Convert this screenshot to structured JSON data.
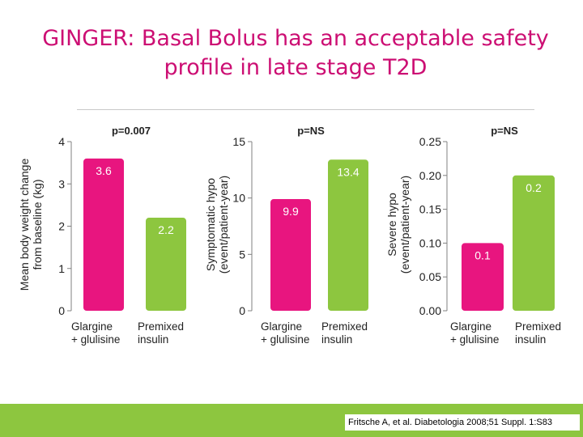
{
  "title": {
    "line1": "GINGER: Basal Bolus has an acceptable safety",
    "line2": "profile in late stage T2D"
  },
  "colors": {
    "title": "#cc0e73",
    "glargine": "#e8157f",
    "premixed": "#8dc63f",
    "footer": "#8dc63f",
    "axis": "#808080"
  },
  "chart_data": [
    {
      "type": "bar",
      "categories": [
        "Glargine + glulisine",
        "Premixed insulin"
      ],
      "category_lines": [
        [
          "Glargine",
          "+ glulisine"
        ],
        [
          "Premixed",
          "insulin"
        ]
      ],
      "values": [
        3.6,
        2.2
      ],
      "value_labels": [
        "3.6",
        "2.2"
      ],
      "ylabel": [
        "Mean body weight change",
        "from baseline (kg)"
      ],
      "ylim": [
        0,
        4
      ],
      "yticks": [
        0,
        1,
        2,
        3,
        4
      ],
      "ytick_labels": [
        "0",
        "1",
        "2",
        "3",
        "4"
      ],
      "annotation": "p=0.007"
    },
    {
      "type": "bar",
      "categories": [
        "Glargine + glulisine",
        "Premixed insulin"
      ],
      "category_lines": [
        [
          "Glargine",
          "+ glulisine"
        ],
        [
          "Premixed",
          "insulin"
        ]
      ],
      "values": [
        9.9,
        13.4
      ],
      "value_labels": [
        "9.9",
        "13.4"
      ],
      "ylabel": [
        "Symptomatic hypo",
        "(event/patient-year)"
      ],
      "ylim": [
        0,
        15
      ],
      "yticks": [
        0,
        5,
        10,
        15
      ],
      "ytick_labels": [
        "0",
        "5",
        "10",
        "15"
      ],
      "annotation": "p=NS"
    },
    {
      "type": "bar",
      "categories": [
        "Glargine + glulisine",
        "Premixed insulin"
      ],
      "category_lines": [
        [
          "Glargine",
          "+ glulisine"
        ],
        [
          "Premixed",
          "insulin"
        ]
      ],
      "values": [
        0.1,
        0.2
      ],
      "value_labels": [
        "0.1",
        "0.2"
      ],
      "ylabel": [
        "Severe hypo",
        "(event/patient-year)"
      ],
      "ylim": [
        0,
        0.25
      ],
      "yticks": [
        0,
        0.05,
        0.1,
        0.15,
        0.2,
        0.25
      ],
      "ytick_labels": [
        "0.00",
        "0.05",
        "0.10",
        "0.15",
        "0.20",
        "0.25"
      ],
      "annotation": "p=NS"
    }
  ],
  "footer": {
    "citation": "Fritsche A, et al. Diabetologia 2008;51 Suppl. 1:S83"
  }
}
